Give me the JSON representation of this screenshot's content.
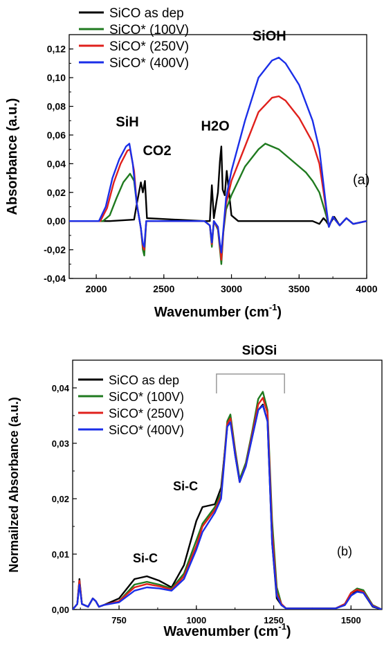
{
  "chart_data": [
    {
      "type": "line",
      "panel_label": "(a)",
      "xlabel": "Wavenumber (cm",
      "xlabel_sup": "-1",
      "xlabel_close": ")",
      "ylabel": "Absorbance (a.u.)",
      "xlim": [
        1800,
        4000
      ],
      "ylim": [
        -0.04,
        0.13
      ],
      "xticks": [
        2000,
        2500,
        3000,
        3500,
        4000
      ],
      "xtick_labels": [
        "2000",
        "2500",
        "3000",
        "3500",
        "4000"
      ],
      "yticks": [
        -0.04,
        -0.02,
        0.0,
        0.02,
        0.04,
        0.06,
        0.08,
        0.1,
        0.12
      ],
      "ytick_labels": [
        "-0,04",
        "-0,02",
        "0,00",
        "0,02",
        "0,04",
        "0,06",
        "0,08",
        "0,10",
        "0,12"
      ],
      "legend_position": "top-left",
      "annotations": [
        {
          "text": "SiH",
          "x": 2230,
          "y": 0.066
        },
        {
          "text": "CO2",
          "x": 2450,
          "y": 0.046
        },
        {
          "text": "H2O",
          "x": 2880,
          "y": 0.063
        },
        {
          "text": "SiOH",
          "x": 3280,
          "y": 0.126
        }
      ],
      "series": [
        {
          "name": "SiCO as dep",
          "color": "#000000",
          "x": [
            1800,
            2100,
            2280,
            2300,
            2330,
            2345,
            2360,
            2375,
            2800,
            2840,
            2855,
            2870,
            2900,
            2915,
            2925,
            2935,
            2950,
            2965,
            3000,
            3050,
            3200,
            3400,
            3600,
            3650,
            3680,
            3700,
            3720,
            3760,
            3800,
            3850,
            3900,
            4000
          ],
          "y": [
            0.0,
            0.0,
            0.001,
            0.012,
            0.027,
            0.02,
            0.028,
            0.002,
            0.0,
            0.0,
            0.025,
            0.002,
            0.02,
            0.042,
            0.052,
            0.022,
            0.018,
            0.035,
            0.004,
            0.0,
            0.0,
            0.0,
            0.0,
            -0.002,
            0.002,
            0.0,
            -0.003,
            0.003,
            -0.003,
            0.002,
            -0.002,
            0.0
          ]
        },
        {
          "name": "SiCO* (100V)",
          "color": "#1f7a1f",
          "x": [
            1800,
            2050,
            2100,
            2150,
            2200,
            2250,
            2280,
            2300,
            2330,
            2345,
            2355,
            2370,
            2400,
            2800,
            2840,
            2855,
            2870,
            2900,
            2915,
            2925,
            2940,
            2960,
            3000,
            3100,
            3200,
            3250,
            3300,
            3350,
            3400,
            3500,
            3550,
            3600,
            3650,
            3700,
            3720,
            3750,
            3800,
            3850,
            3900,
            4000
          ],
          "y": [
            0.0,
            0.0,
            0.004,
            0.016,
            0.027,
            0.033,
            0.028,
            0.012,
            -0.005,
            -0.02,
            -0.024,
            0.0,
            0.0,
            0.0,
            -0.003,
            -0.018,
            0.0,
            -0.006,
            -0.02,
            -0.03,
            -0.008,
            0.008,
            0.018,
            0.038,
            0.05,
            0.054,
            0.052,
            0.05,
            0.046,
            0.038,
            0.034,
            0.028,
            0.02,
            0.004,
            -0.004,
            0.003,
            -0.003,
            0.002,
            -0.002,
            0.0
          ]
        },
        {
          "name": "SiCO* (250V)",
          "color": "#e0201c",
          "x": [
            1800,
            2030,
            2080,
            2130,
            2180,
            2230,
            2250,
            2280,
            2300,
            2330,
            2345,
            2355,
            2370,
            2400,
            2800,
            2840,
            2855,
            2870,
            2900,
            2915,
            2925,
            2940,
            2960,
            3000,
            3100,
            3200,
            3300,
            3350,
            3400,
            3500,
            3600,
            3650,
            3700,
            3720,
            3750,
            3800,
            3850,
            3900,
            4000
          ],
          "y": [
            0.0,
            0.0,
            0.009,
            0.027,
            0.04,
            0.049,
            0.05,
            0.035,
            0.012,
            -0.005,
            -0.018,
            -0.02,
            0.0,
            0.0,
            0.0,
            -0.003,
            -0.016,
            0.0,
            -0.005,
            -0.018,
            -0.027,
            -0.007,
            0.012,
            0.028,
            0.052,
            0.076,
            0.086,
            0.087,
            0.084,
            0.072,
            0.055,
            0.04,
            0.008,
            -0.004,
            0.003,
            -0.003,
            0.002,
            -0.002,
            0.0
          ]
        },
        {
          "name": "SiCO* (400V)",
          "color": "#1a2ee8",
          "x": [
            1800,
            2020,
            2070,
            2120,
            2170,
            2220,
            2245,
            2270,
            2300,
            2330,
            2345,
            2355,
            2370,
            2400,
            2800,
            2840,
            2855,
            2870,
            2900,
            2915,
            2925,
            2940,
            2960,
            3000,
            3100,
            3200,
            3300,
            3350,
            3400,
            3500,
            3600,
            3650,
            3700,
            3720,
            3750,
            3800,
            3850,
            3900,
            4000
          ],
          "y": [
            0.0,
            0.0,
            0.01,
            0.03,
            0.043,
            0.052,
            0.054,
            0.04,
            0.012,
            -0.005,
            -0.016,
            -0.018,
            0.0,
            0.0,
            0.0,
            -0.003,
            -0.015,
            0.0,
            -0.004,
            -0.016,
            -0.022,
            -0.006,
            0.016,
            0.035,
            0.07,
            0.1,
            0.112,
            0.114,
            0.11,
            0.095,
            0.07,
            0.05,
            0.01,
            -0.004,
            0.003,
            -0.003,
            0.002,
            -0.002,
            0.0
          ]
        }
      ]
    },
    {
      "type": "line",
      "panel_label": "(b)",
      "title": "SiOSi",
      "xlabel": "Wavenumber (cm",
      "xlabel_sup": "-1",
      "xlabel_close": ")",
      "ylabel": "Normailzed Absorbance (a.u.)",
      "xlim": [
        600,
        1600
      ],
      "ylim": [
        0.0,
        0.045
      ],
      "xticks": [
        750,
        1000,
        1250,
        1500
      ],
      "xtick_labels": [
        "750",
        "1000",
        "1250",
        "1500"
      ],
      "yticks": [
        0.0,
        0.01,
        0.02,
        0.03,
        0.04
      ],
      "ytick_labels": [
        "0,00",
        "0,01",
        "0,02",
        "0,03",
        "0,04"
      ],
      "legend_position": "top-left",
      "annotations": [
        {
          "text": "Si-C",
          "x": 835,
          "y": 0.0085
        },
        {
          "text": "Si-C",
          "x": 965,
          "y": 0.0215
        }
      ],
      "bracket": {
        "x_start": 1065,
        "x_end": 1285,
        "y": 0.0425,
        "y_bottom": 0.039
      },
      "series": [
        {
          "name": "SiCO as dep",
          "color": "#000000",
          "x": [
            600,
            615,
            622,
            630,
            650,
            665,
            675,
            685,
            700,
            750,
            800,
            840,
            880,
            920,
            960,
            1000,
            1020,
            1060,
            1080,
            1100,
            1110,
            1125,
            1140,
            1160,
            1180,
            1200,
            1215,
            1230,
            1245,
            1260,
            1275,
            1290,
            1450,
            1480,
            1500,
            1520,
            1540,
            1570,
            1600
          ],
          "y": [
            0.0,
            0.001,
            0.0055,
            0.001,
            0.0005,
            0.002,
            0.0015,
            0.0005,
            0.0008,
            0.002,
            0.0055,
            0.006,
            0.0052,
            0.004,
            0.008,
            0.016,
            0.0185,
            0.019,
            0.022,
            0.033,
            0.035,
            0.028,
            0.023,
            0.026,
            0.031,
            0.036,
            0.037,
            0.034,
            0.012,
            0.002,
            0.0008,
            0.0002,
            0.0002,
            0.0008,
            0.0025,
            0.0035,
            0.003,
            0.0005,
            0.0
          ]
        },
        {
          "name": "SiCO* (100V)",
          "color": "#1f7a1f",
          "x": [
            600,
            615,
            622,
            630,
            650,
            665,
            675,
            685,
            700,
            750,
            800,
            840,
            880,
            920,
            960,
            1000,
            1020,
            1060,
            1080,
            1100,
            1110,
            1125,
            1140,
            1160,
            1180,
            1200,
            1215,
            1230,
            1245,
            1260,
            1275,
            1290,
            1450,
            1480,
            1500,
            1520,
            1540,
            1570,
            1600
          ],
          "y": [
            0.0,
            0.001,
            0.005,
            0.001,
            0.0005,
            0.002,
            0.0015,
            0.0005,
            0.0008,
            0.0015,
            0.0045,
            0.005,
            0.0045,
            0.0038,
            0.0065,
            0.0125,
            0.0155,
            0.0185,
            0.021,
            0.034,
            0.0352,
            0.029,
            0.0235,
            0.0265,
            0.032,
            0.038,
            0.0393,
            0.036,
            0.016,
            0.004,
            0.001,
            0.0002,
            0.0002,
            0.001,
            0.003,
            0.0038,
            0.0035,
            0.0008,
            0.0
          ]
        },
        {
          "name": "SiCO* (250V)",
          "color": "#e0201c",
          "x": [
            600,
            615,
            622,
            630,
            650,
            665,
            675,
            685,
            700,
            750,
            800,
            840,
            880,
            920,
            960,
            1000,
            1020,
            1060,
            1080,
            1100,
            1110,
            1125,
            1140,
            1160,
            1180,
            1200,
            1215,
            1230,
            1245,
            1260,
            1275,
            1290,
            1450,
            1480,
            1500,
            1520,
            1540,
            1570,
            1600
          ],
          "y": [
            0.0,
            0.001,
            0.0052,
            0.001,
            0.0005,
            0.002,
            0.0015,
            0.0005,
            0.0008,
            0.0015,
            0.004,
            0.0046,
            0.0042,
            0.0036,
            0.006,
            0.0115,
            0.015,
            0.018,
            0.0205,
            0.0335,
            0.0345,
            0.0285,
            0.023,
            0.026,
            0.0315,
            0.037,
            0.0382,
            0.0355,
            0.014,
            0.003,
            0.001,
            0.0002,
            0.0002,
            0.001,
            0.003,
            0.0036,
            0.0032,
            0.0007,
            0.0
          ]
        },
        {
          "name": "SiCO* (400V)",
          "color": "#1a2ee8",
          "x": [
            600,
            615,
            622,
            630,
            650,
            665,
            675,
            685,
            700,
            750,
            800,
            840,
            880,
            920,
            960,
            1000,
            1020,
            1060,
            1080,
            1100,
            1110,
            1125,
            1140,
            1160,
            1180,
            1200,
            1215,
            1230,
            1245,
            1260,
            1275,
            1290,
            1450,
            1480,
            1500,
            1520,
            1540,
            1570,
            1600
          ],
          "y": [
            0.0,
            0.001,
            0.0045,
            0.001,
            0.0005,
            0.002,
            0.0015,
            0.0005,
            0.0008,
            0.0013,
            0.0034,
            0.004,
            0.0038,
            0.0034,
            0.0055,
            0.0108,
            0.014,
            0.0175,
            0.02,
            0.033,
            0.0338,
            0.028,
            0.023,
            0.0258,
            0.031,
            0.036,
            0.0368,
            0.034,
            0.012,
            0.0025,
            0.0008,
            0.0002,
            0.0002,
            0.0008,
            0.0025,
            0.0032,
            0.003,
            0.0006,
            0.0
          ]
        }
      ]
    }
  ]
}
